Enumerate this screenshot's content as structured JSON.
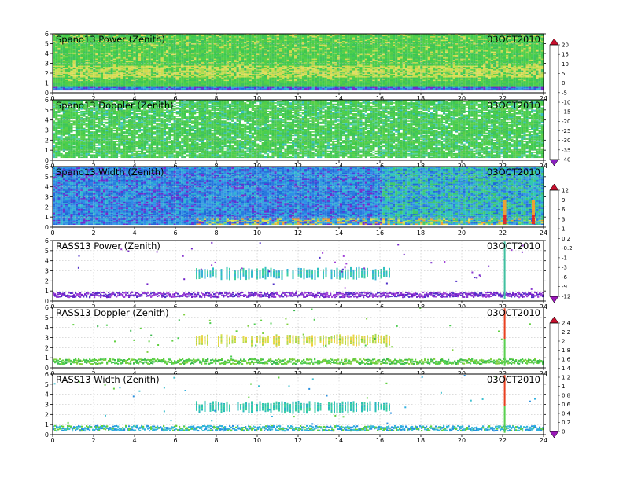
{
  "chart_data": [
    {
      "type": "heatmap",
      "title": "Spano13 Power (Zenith)",
      "date": "03OCT2010",
      "x_ticks": [
        "0",
        "2",
        "4",
        "6",
        "8",
        "10",
        "12",
        "14",
        "16",
        "18",
        "20",
        "22",
        "24"
      ],
      "y_ticks": [
        "0",
        "1",
        "2",
        "3",
        "4",
        "5",
        "6"
      ],
      "xlim": [
        0,
        24
      ],
      "ylim": [
        0,
        6
      ],
      "colorbar": [
        "20",
        "15",
        "10",
        "5",
        "0",
        "-5",
        "-10",
        "-15",
        "-20",
        "-25",
        "-30",
        "-35",
        "-40"
      ],
      "grid": true
    },
    {
      "type": "heatmap",
      "title": "Spano13 Doppler (Zenith)",
      "date": "03OCT2010",
      "x_ticks": [
        "0",
        "2",
        "4",
        "6",
        "8",
        "10",
        "12",
        "14",
        "16",
        "18",
        "20",
        "22",
        "24"
      ],
      "y_ticks": [
        "0",
        "1",
        "2",
        "3",
        "4",
        "5",
        "6"
      ],
      "xlim": [
        0,
        24
      ],
      "ylim": [
        0,
        6
      ],
      "grid": true
    },
    {
      "type": "heatmap",
      "title": "Spano13 Width (Zenith)",
      "date": "03OCT2010",
      "x_ticks": [
        "0",
        "2",
        "4",
        "6",
        "8",
        "10",
        "12",
        "14",
        "16",
        "18",
        "20",
        "22",
        "24"
      ],
      "y_ticks": [
        "0",
        "1",
        "2",
        "3",
        "4",
        "5",
        "6"
      ],
      "xlim": [
        0,
        24
      ],
      "ylim": [
        0,
        6
      ],
      "colorbar": [
        "12",
        "9",
        "6",
        "3",
        "1",
        "0.2",
        "-0.2",
        "-1",
        "-3",
        "-6",
        "-9",
        "-12"
      ],
      "grid": true
    },
    {
      "type": "scatter",
      "title": "RASS13 Power (Zenith)",
      "date": "03OCT2010",
      "x_ticks": [
        "0",
        "2",
        "4",
        "6",
        "8",
        "10",
        "12",
        "14",
        "16",
        "18",
        "20",
        "22",
        "24"
      ],
      "y_ticks": [
        "0",
        "1",
        "2",
        "3",
        "4",
        "5",
        "6"
      ],
      "xlim": [
        0,
        24
      ],
      "ylim": [
        0,
        6
      ],
      "grid": true
    },
    {
      "type": "scatter",
      "title": "RASS13 Doppler (Zenith)",
      "date": "03OCT2010",
      "x_ticks": [
        "0",
        "2",
        "4",
        "6",
        "8",
        "10",
        "12",
        "14",
        "16",
        "18",
        "20",
        "22",
        "24"
      ],
      "y_ticks": [
        "0",
        "1",
        "2",
        "3",
        "4",
        "5",
        "6"
      ],
      "xlim": [
        0,
        24
      ],
      "ylim": [
        0,
        6
      ],
      "colorbar": [
        "2.4",
        "2.2",
        "2",
        "1.8",
        "1.6",
        "1.4",
        "1.2",
        "1",
        "0.8",
        "0.6",
        "0.4",
        "0.2",
        "0"
      ],
      "grid": true
    },
    {
      "type": "scatter",
      "title": "RASS13 Width (Zenith)",
      "date": "03OCT2010",
      "x_ticks": [
        "0",
        "2",
        "4",
        "6",
        "8",
        "10",
        "12",
        "14",
        "16",
        "18",
        "20",
        "22",
        "24"
      ],
      "y_ticks": [
        "0",
        "1",
        "2",
        "3",
        "4",
        "5",
        "6"
      ],
      "xlim": [
        0,
        24
      ],
      "ylim": [
        0,
        6
      ],
      "grid": true
    }
  ]
}
